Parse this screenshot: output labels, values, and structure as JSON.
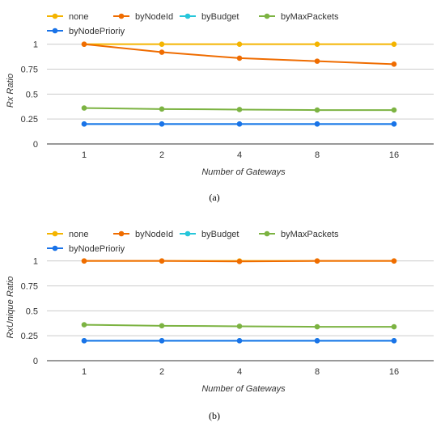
{
  "chart_data": [
    {
      "type": "line",
      "caption": "(a)",
      "xlabel": "Number of Gateways",
      "ylabel": "Rx Ratio",
      "categories": [
        "1",
        "2",
        "4",
        "8",
        "16"
      ],
      "yticks": [
        "0",
        "0.25",
        "0.5",
        "0.75",
        "1"
      ],
      "ylim": [
        0,
        1.2
      ],
      "grid": true,
      "legend_position": "top",
      "series": [
        {
          "name": "none",
          "color": "#f4b400",
          "values": [
            1.0,
            1.0,
            1.0,
            1.0,
            1.0
          ]
        },
        {
          "name": "byNodeId",
          "color": "#ef6c00",
          "values": [
            1.0,
            0.92,
            0.86,
            0.83,
            0.8
          ]
        },
        {
          "name": "byBudget",
          "color": "#26c6da",
          "values": [
            0.2,
            0.2,
            0.2,
            0.2,
            0.2
          ]
        },
        {
          "name": "byMaxPackets",
          "color": "#7cb342",
          "values": [
            0.36,
            0.35,
            0.345,
            0.34,
            0.34
          ]
        },
        {
          "name": "byNodePrioriy",
          "color": "#1a73e8",
          "values": [
            0.2,
            0.2,
            0.2,
            0.2,
            0.2
          ]
        }
      ]
    },
    {
      "type": "line",
      "caption": "(b)",
      "xlabel": "Number of Gateways",
      "ylabel": "RxUnique Ratio",
      "categories": [
        "1",
        "2",
        "4",
        "8",
        "16"
      ],
      "yticks": [
        "0",
        "0.25",
        "0.5",
        "0.75",
        "1"
      ],
      "ylim": [
        0,
        1.2
      ],
      "grid": true,
      "legend_position": "top",
      "series": [
        {
          "name": "none",
          "color": "#f4b400",
          "values": [
            1.0,
            1.0,
            1.0,
            1.0,
            1.0
          ]
        },
        {
          "name": "byNodeId",
          "color": "#ef6c00",
          "values": [
            1.0,
            1.0,
            0.995,
            1.0,
            1.0
          ]
        },
        {
          "name": "byBudget",
          "color": "#26c6da",
          "values": [
            0.2,
            0.2,
            0.2,
            0.2,
            0.2
          ]
        },
        {
          "name": "byMaxPackets",
          "color": "#7cb342",
          "values": [
            0.36,
            0.35,
            0.345,
            0.34,
            0.34
          ]
        },
        {
          "name": "byNodePrioriy",
          "color": "#1a73e8",
          "values": [
            0.2,
            0.2,
            0.2,
            0.2,
            0.2
          ]
        }
      ]
    }
  ]
}
